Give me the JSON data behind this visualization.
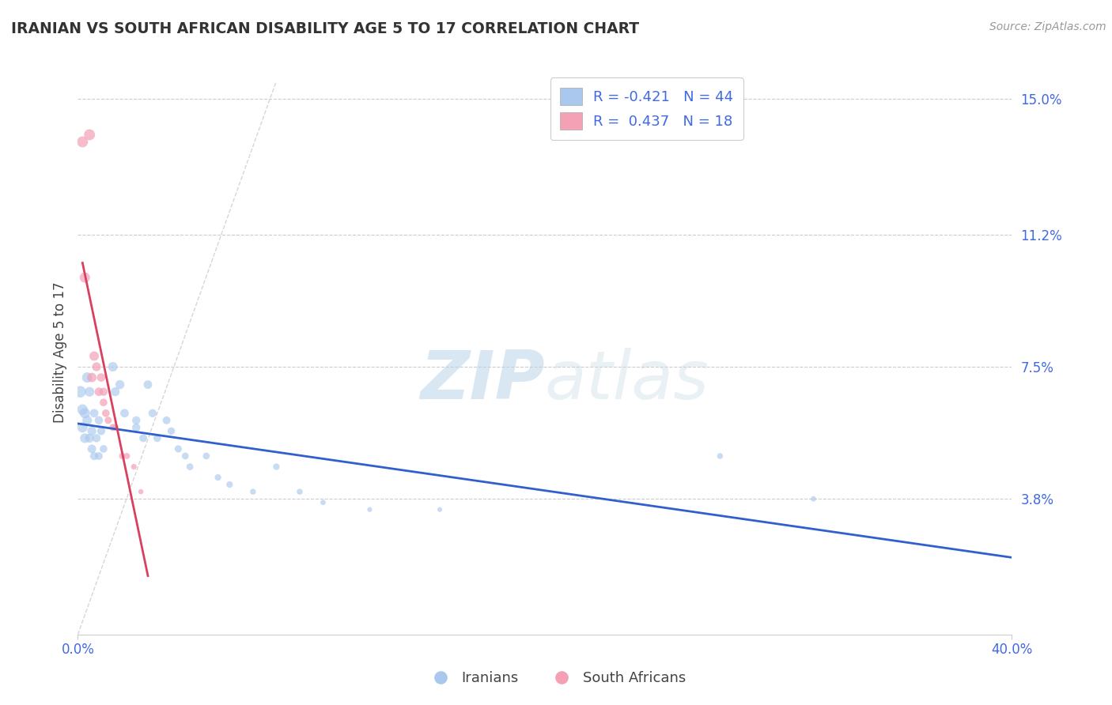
{
  "title": "IRANIAN VS SOUTH AFRICAN DISABILITY AGE 5 TO 17 CORRELATION CHART",
  "source_text": "Source: ZipAtlas.com",
  "ylabel": "Disability Age 5 to 17",
  "xlim": [
    0.0,
    0.4
  ],
  "ylim": [
    0.0,
    0.158
  ],
  "ytick_values": [
    0.038,
    0.075,
    0.112,
    0.15
  ],
  "ytick_labels": [
    "3.8%",
    "7.5%",
    "11.2%",
    "15.0%"
  ],
  "xtick_values": [
    0.0,
    0.4
  ],
  "xtick_labels": [
    "0.0%",
    "40.0%"
  ],
  "grid_color": "#cccccc",
  "background_color": "#ffffff",
  "iranian_color": "#aac8ee",
  "south_african_color": "#f4a0b5",
  "iranian_line_color": "#3060cc",
  "south_african_line_color": "#d94060",
  "diagonal_line_color": "#cccccc",
  "legend_R_iranian": "-0.421",
  "legend_N_iranian": "44",
  "legend_R_sa": "0.437",
  "legend_N_sa": "18",
  "watermark_zip": "ZIP",
  "watermark_atlas": "atlas",
  "iranians_label": "Iranians",
  "sa_label": "South Africans",
  "iranian_points": [
    [
      0.001,
      0.068
    ],
    [
      0.002,
      0.063
    ],
    [
      0.002,
      0.058
    ],
    [
      0.003,
      0.062
    ],
    [
      0.003,
      0.055
    ],
    [
      0.004,
      0.072
    ],
    [
      0.004,
      0.06
    ],
    [
      0.005,
      0.055
    ],
    [
      0.005,
      0.068
    ],
    [
      0.006,
      0.052
    ],
    [
      0.006,
      0.057
    ],
    [
      0.007,
      0.05
    ],
    [
      0.007,
      0.062
    ],
    [
      0.008,
      0.055
    ],
    [
      0.009,
      0.06
    ],
    [
      0.009,
      0.05
    ],
    [
      0.01,
      0.057
    ],
    [
      0.011,
      0.052
    ],
    [
      0.015,
      0.075
    ],
    [
      0.016,
      0.068
    ],
    [
      0.018,
      0.07
    ],
    [
      0.02,
      0.062
    ],
    [
      0.025,
      0.058
    ],
    [
      0.025,
      0.06
    ],
    [
      0.028,
      0.055
    ],
    [
      0.03,
      0.07
    ],
    [
      0.032,
      0.062
    ],
    [
      0.034,
      0.055
    ],
    [
      0.038,
      0.06
    ],
    [
      0.04,
      0.057
    ],
    [
      0.043,
      0.052
    ],
    [
      0.046,
      0.05
    ],
    [
      0.048,
      0.047
    ],
    [
      0.055,
      0.05
    ],
    [
      0.06,
      0.044
    ],
    [
      0.065,
      0.042
    ],
    [
      0.075,
      0.04
    ],
    [
      0.085,
      0.047
    ],
    [
      0.095,
      0.04
    ],
    [
      0.105,
      0.037
    ],
    [
      0.125,
      0.035
    ],
    [
      0.155,
      0.035
    ],
    [
      0.275,
      0.05
    ],
    [
      0.315,
      0.038
    ]
  ],
  "sa_points": [
    [
      0.002,
      0.138
    ],
    [
      0.003,
      0.1
    ],
    [
      0.005,
      0.14
    ],
    [
      0.006,
      0.072
    ],
    [
      0.007,
      0.078
    ],
    [
      0.008,
      0.075
    ],
    [
      0.009,
      0.068
    ],
    [
      0.01,
      0.072
    ],
    [
      0.011,
      0.068
    ],
    [
      0.011,
      0.065
    ],
    [
      0.012,
      0.062
    ],
    [
      0.013,
      0.06
    ],
    [
      0.015,
      0.058
    ],
    [
      0.016,
      0.058
    ],
    [
      0.019,
      0.05
    ],
    [
      0.021,
      0.05
    ],
    [
      0.024,
      0.047
    ],
    [
      0.027,
      0.04
    ]
  ],
  "iranian_sizes": [
    55,
    50,
    48,
    48,
    44,
    48,
    44,
    40,
    44,
    38,
    40,
    36,
    38,
    36,
    37,
    34,
    36,
    33,
    44,
    40,
    41,
    38,
    36,
    36,
    34,
    38,
    36,
    33,
    34,
    32,
    31,
    29,
    29,
    29,
    27,
    27,
    24,
    27,
    24,
    21,
    19,
    19,
    24,
    21
  ],
  "sa_sizes": [
    52,
    48,
    52,
    43,
    43,
    40,
    38,
    38,
    36,
    33,
    33,
    31,
    30,
    28,
    26,
    26,
    23,
    20
  ]
}
